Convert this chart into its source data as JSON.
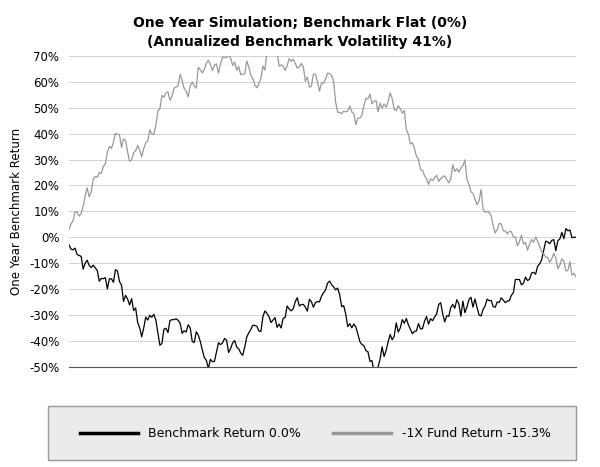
{
  "title_line1": "One Year Simulation; Benchmark Flat (0%)",
  "title_line2": "(Annualized Benchmark Volatility 41%)",
  "ylabel": "One Year Benchmark Return",
  "ylim": [
    -0.5,
    0.7
  ],
  "yticks": [
    -0.5,
    -0.4,
    -0.3,
    -0.2,
    -0.1,
    0.0,
    0.1,
    0.2,
    0.3,
    0.4,
    0.5,
    0.6,
    0.7
  ],
  "legend_label1": "Benchmark Return 0.0%",
  "legend_label2": "-1X Fund Return -15.3%",
  "line1_color": "#000000",
  "line2_color": "#999999",
  "background_color": "#ffffff",
  "n_points": 252,
  "seed": 7,
  "vol": 0.41
}
